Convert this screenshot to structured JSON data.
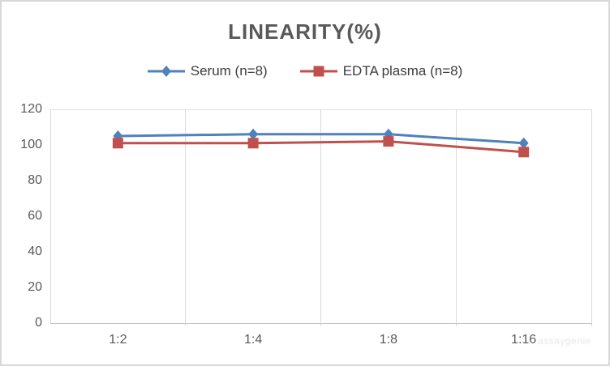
{
  "window": {
    "background": "#ffffff",
    "border_color": "#d8d8d8"
  },
  "chart_data": {
    "type": "line",
    "title": "LINEARITY(%)",
    "categories": [
      "1:2",
      "1:4",
      "1:8",
      "1:16"
    ],
    "series": [
      {
        "name": "Serum (n=8)",
        "color": "#4F81BD",
        "marker": "diamond",
        "values": [
          105,
          106,
          106,
          101
        ]
      },
      {
        "name": "EDTA plasma (n=8)",
        "color": "#C0504D",
        "marker": "square",
        "values": [
          101,
          101,
          102,
          96
        ]
      }
    ],
    "ylim": [
      0,
      120
    ],
    "yticks": [
      120,
      100,
      80,
      60,
      40,
      20,
      0
    ],
    "xlabel": "",
    "ylabel": "",
    "grid": "vertical category boundaries, top boundary line, x axis line",
    "legend_position": "top-center"
  },
  "colors": {
    "title_text": "#595959",
    "axis_tick_text": "#595959",
    "legend_text": "#3d3d3d",
    "gridline": "#dadada",
    "axis_line": "#c4c4c4",
    "watermark_text": "#c9c9c9"
  },
  "watermark": {
    "text": "assaygenie"
  }
}
